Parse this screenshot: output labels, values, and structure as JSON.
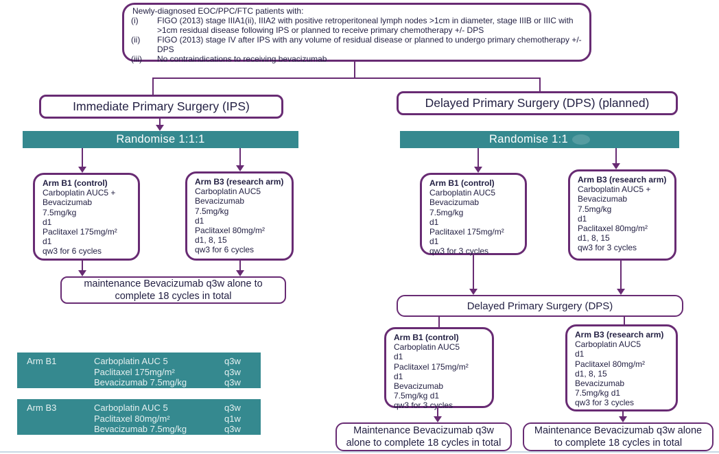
{
  "palette": {
    "teal": "#35898F",
    "purple": "#682B73",
    "ink": "#232043"
  },
  "eligibility": {
    "title": "Newly-diagnosed EOC/PPC/FTC patients with:",
    "items": [
      {
        "label": "(i)",
        "text": "FIGO (2013) stage IIIA1(ii), IIIA2 with positive retroperitoneal lymph nodes >1cm in diameter, stage IIIB or IIIC  with >1cm residual disease following IPS or planned to receive primary chemotherapy +/- DPS"
      },
      {
        "label": "(ii)",
        "text": "FIGO (2013) stage IV after IPS with any volume of residual disease or planned to undergo primary chemotherapy +/- DPS"
      },
      {
        "label": "(iii)",
        "text": "No contraindications to receiving bevacizumab"
      }
    ]
  },
  "ips_branch": {
    "header": "Immediate Primary Surgery (IPS)",
    "randomise": "Randomise 1:1:1",
    "arm_b1": {
      "title": "Arm B1 (control)",
      "lines": [
        "Carboplatin AUC5 +",
        "Bevacizumab",
        "7.5mg/kg",
        "d1",
        "Paclitaxel 175mg/m²",
        "d1",
        "qw3 for 6 cycles"
      ]
    },
    "arm_b3": {
      "title": "Arm B3 (research arm)",
      "lines": [
        "Carboplatin AUC5",
        "Bevacizumab",
        "7.5mg/kg",
        "d1",
        "Paclitaxel 80mg/m²",
        "d1, 8, 15",
        "qw3 for 6 cycles"
      ]
    },
    "maintenance": "maintenance Bevacizumab q3w alone to complete 18 cycles in total"
  },
  "dps_branch": {
    "header": "Delayed Primary Surgery (DPS) (planned)",
    "randomise": "Randomise 1:1",
    "arm_b1": {
      "title": "Arm B1 (control)",
      "lines": [
        "Carboplatin AUC5",
        "Bevacizumab",
        "7.5mg/kg",
        "d1",
        "Paclitaxel 175mg/m²",
        "d1",
        "qw3 for 3 cycles"
      ]
    },
    "arm_b3": {
      "title": "Arm B3 (research arm)",
      "lines": [
        "Carboplatin AUC5 +",
        "Bevacizumab",
        "7.5mg/kg",
        "d1",
        "Paclitaxel 80mg/m²",
        "d1, 8, 15",
        "qw3 for 3 cycles"
      ]
    },
    "surgery_box": "Delayed Primary Surgery (DPS)",
    "post_b1": {
      "title": "Arm B1 (control)",
      "lines": [
        "Carboplatin AUC5",
        "d1",
        "Paclitaxel 175mg/m²",
        "d1",
        "Bevacizumab",
        "7.5mg/kg d1",
        "qw3 for 3 cycles"
      ]
    },
    "post_b3": {
      "title": "Arm B3 (research arm)",
      "lines": [
        "Carboplatin AUC5",
        "d1",
        "Paclitaxel 80mg/m²",
        "d1, 8, 15",
        "Bevacizumab",
        "7.5mg/kg d1",
        "qw3 for 3 cycles"
      ]
    },
    "maintenance_b1": "Maintenance Bevacizumab q3w alone to complete 18 cycles in total",
    "maintenance_b3": "Maintenance Bevacizumab q3w alone to complete 18 cycles in total"
  },
  "legend": [
    {
      "arm": "Arm B1",
      "rows": [
        {
          "drug": "Carboplatin AUC 5",
          "freq": "q3w"
        },
        {
          "drug": "Paclitaxel 175mg/m²",
          "freq": "q3w"
        },
        {
          "drug": "Bevacizumab 7.5mg/kg",
          "freq": "q3w"
        }
      ]
    },
    {
      "arm": "Arm B3",
      "rows": [
        {
          "drug": "Carboplatin AUC 5",
          "freq": "q3w"
        },
        {
          "drug": "Paclitaxel 80mg/m²",
          "freq": "q1w"
        },
        {
          "drug": "Bevacizumab 7.5mg/kg",
          "freq": "q3w"
        }
      ]
    }
  ]
}
